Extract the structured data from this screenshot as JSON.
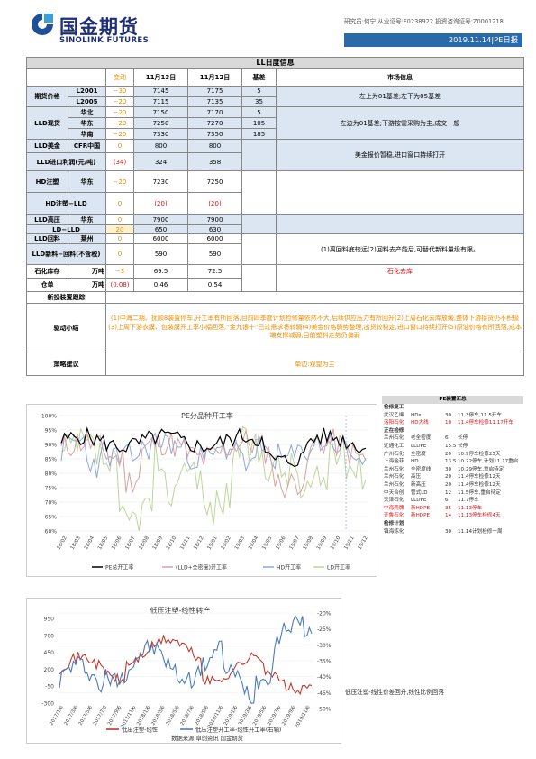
{
  "header": {
    "logo_cn": "国金期货",
    "logo_en": "SINOLINK FUTURES",
    "analyst": "研究员:何宁 从业证号:F0238922 投资咨询证号:Z0001218",
    "date_title": "2019.11.14|PE日报"
  },
  "table": {
    "title": "LL日度信息",
    "headers": [
      "变动",
      "11月13日",
      "11月12日",
      "基差",
      "市场信息"
    ],
    "futures": {
      "label": "期货价格",
      "rows": [
        {
          "name": "L2001",
          "chg": "−30",
          "d13": "7145",
          "d12": "7175",
          "basis": "5"
        },
        {
          "name": "L2005",
          "chg": "−20",
          "d13": "7115",
          "d12": "7135",
          "basis": "35"
        }
      ],
      "info": "左上为01基差;左下为05基差"
    },
    "spot": {
      "label": "LLD现货",
      "rows": [
        {
          "name": "华北",
          "chg": "−20",
          "d13": "7150",
          "d12": "7170",
          "basis": "5"
        },
        {
          "name": "华东",
          "chg": "−20",
          "d13": "7250",
          "d12": "7270",
          "basis": "105"
        },
        {
          "name": "华南",
          "chg": "−20",
          "d13": "7330",
          "d12": "7350",
          "basis": "185"
        }
      ],
      "info": "左边为01基差;下游按需采购为主,成交一般"
    },
    "usd": {
      "label": "LLD美金",
      "sub": "CFR中国",
      "chg": "0",
      "d13": "800",
      "d12": "800"
    },
    "import_profit": {
      "label": "LLD进口利润(元/吨)",
      "chg": "(34)",
      "d13": "324",
      "d12": "358"
    },
    "usd_info": "美金报价暂稳,进口窗口持续打开",
    "hd": {
      "label": "HD注塑",
      "sub": "华东",
      "chg": "−20",
      "d13": "7230",
      "d12": "7250"
    },
    "hd_ll": {
      "label": "HD注塑−LLD",
      "chg": "0",
      "d13": "(20)",
      "d12": "(20)"
    },
    "ld": {
      "label": "LLD高压",
      "sub": "华东",
      "chg": "0",
      "d13": "7900",
      "d12": "7900"
    },
    "ld_ll": {
      "label": "LD−LLD",
      "chg": "20",
      "d13": "650",
      "d12": "630"
    },
    "recycle": {
      "label": "LLD回料",
      "sub": "莱州",
      "chg": "0",
      "d13": "6000",
      "d12": "6000"
    },
    "new_minus": {
      "label": "LLD新料−回料(不含税)",
      "chg": "0",
      "d13": "590",
      "d12": "590"
    },
    "recycle_info": "(1)离回料底较远(2)回料去产能后,可替代新料量级有限。",
    "inv": {
      "label": "石化库存",
      "unit": "万吨",
      "chg": "−3",
      "d13": "69.5",
      "d12": "72.5",
      "info": "石化去库"
    },
    "wh": {
      "label": "仓单",
      "unit": "万吨",
      "chg": "(0.08)",
      "d13": "0.46",
      "d12": "0.54"
    },
    "new_device": {
      "label": "新投装置跟踪"
    },
    "driver": {
      "label": "驱动小结",
      "text": "(1)中海二期、抚顺8装置停车,开工率有所回落,目前四季度计划检修量依然不大,后续供应压力有所回升(2)上周石化去库放缓,整体下游接货仍不积极(3)上周下游衣膜、包装膜开工率小幅回落,“金九银十”已过需求将转弱(4)美金价格弱势整理,出货较稳定,进口窗口持续打开(5)原油价格有所回落,成本端支撑减弱,目前塑料走势仍偏弱"
    },
    "strategy": {
      "label": "策略建议",
      "text": "单边:观望为主"
    }
  },
  "chart1": {
    "title": "PE分品种开工率",
    "y_ticks": [
      "100%",
      "95%",
      "90%",
      "85%",
      "80%",
      "75%",
      "70%",
      "65%",
      "60%"
    ],
    "x_ticks": [
      "18/02",
      "18/03",
      "18/04",
      "18/05",
      "18/06",
      "18/07",
      "18/08",
      "18/09",
      "18/10",
      "18/11",
      "18/12",
      "19/01",
      "19/02",
      "19/03",
      "19/04",
      "19/05",
      "19/06",
      "19/07",
      "19/08",
      "19/09",
      "19/10",
      "19/11",
      "19/12"
    ],
    "legend": [
      "PE总开工率",
      "(LLD+全密度)开工率",
      "HD开工率",
      "LD开工率"
    ],
    "colors": [
      "#000000",
      "#d9a0a0",
      "#8ea8d9",
      "#bcd69a"
    ]
  },
  "summary": {
    "title": "PE装置汇总",
    "sections": [
      {
        "name": "检修复工",
        "rows": [
          {
            "a": "武汉乙烯",
            "b": "HDs",
            "c": "30",
            "d": "11.3停车,11.5开车",
            "red": false
          },
          {
            "a": "洛阳石化",
            "b": "HD大线",
            "c": "10",
            "d": "11.4停车检修11.17开车",
            "red": true
          }
        ]
      },
      {
        "name": "正在检修",
        "rows": [
          {
            "a": "兰州石化",
            "b": "老全密度",
            "c": "6",
            "d": "长停",
            "red": false
          },
          {
            "a": "辽通化工",
            "b": "LLDPE",
            "c": "15.5",
            "d": "长停",
            "red": false
          },
          {
            "a": "广州石化",
            "b": "全密度",
            "c": "20",
            "d": "10.9停车检修25天",
            "red": false
          },
          {
            "a": "上海金菲",
            "b": "HD",
            "c": "13.5",
            "d": "10.22停车,计划11.17重启",
            "red": false
          },
          {
            "a": "兰州石化",
            "b": "全密度线",
            "c": "30",
            "d": "10.29停车,重启待定",
            "red": false
          },
          {
            "a": "兰州石化",
            "b": "高压",
            "c": "20",
            "d": "11.4停车检修12天",
            "red": false
          },
          {
            "a": "兰州石化",
            "b": "新高压",
            "c": "20",
            "d": "11.4停车检修12天",
            "red": false
          },
          {
            "a": "中天合创",
            "b": "管式LD",
            "c": "12",
            "d": "11.5停车,重启待定",
            "red": false
          },
          {
            "a": "天津石化",
            "b": "LLDPE",
            "c": "6",
            "d": "11.7停车",
            "red": false
          },
          {
            "a": "中海壳牌",
            "b": "新HDPE",
            "c": "35",
            "d": "11.13停车",
            "red": true
          },
          {
            "a": "齐鲁石化",
            "b": "新HDPE",
            "c": "14",
            "d": "11.13停车检修4天",
            "red": true
          }
        ]
      },
      {
        "name": "检修计划",
        "rows": [
          {
            "a": "镇海炼化",
            "b": "",
            "c": "30",
            "d": "11.14计划检修一周",
            "red": false
          }
        ]
      }
    ]
  },
  "chart2": {
    "title": "低压注塑-线性转产",
    "y_left_ticks": [
      "950",
      "700",
      "450",
      "200",
      "-50",
      "-300"
    ],
    "y_right_ticks": [
      "-20%",
      "-25%",
      "-30%",
      "-35%",
      "-40%",
      "-45%",
      "-50%"
    ],
    "x_ticks": [
      "2017/1/6",
      "2017/3/6",
      "2017/5/6",
      "2017/7/6",
      "2017/9/6",
      "2017/11/6",
      "2018/1/6",
      "2018/3/6",
      "2018/5/6",
      "2018/7/6",
      "2018/9/6",
      "2018/11/6",
      "2019/1/6",
      "2019/3/6",
      "2019/5/6",
      "2019/7/6",
      "2019/9/6",
      "2019/11/6"
    ],
    "legend": [
      "低压注塑-线性",
      "低压注塑开工率-线性开工率(右轴)"
    ],
    "colors": [
      "#c0392b",
      "#4a7ebb"
    ],
    "source": "数据来源:卓创资讯 国金期货",
    "note": "低压注塑-线性价差回升,线性比例回落"
  }
}
